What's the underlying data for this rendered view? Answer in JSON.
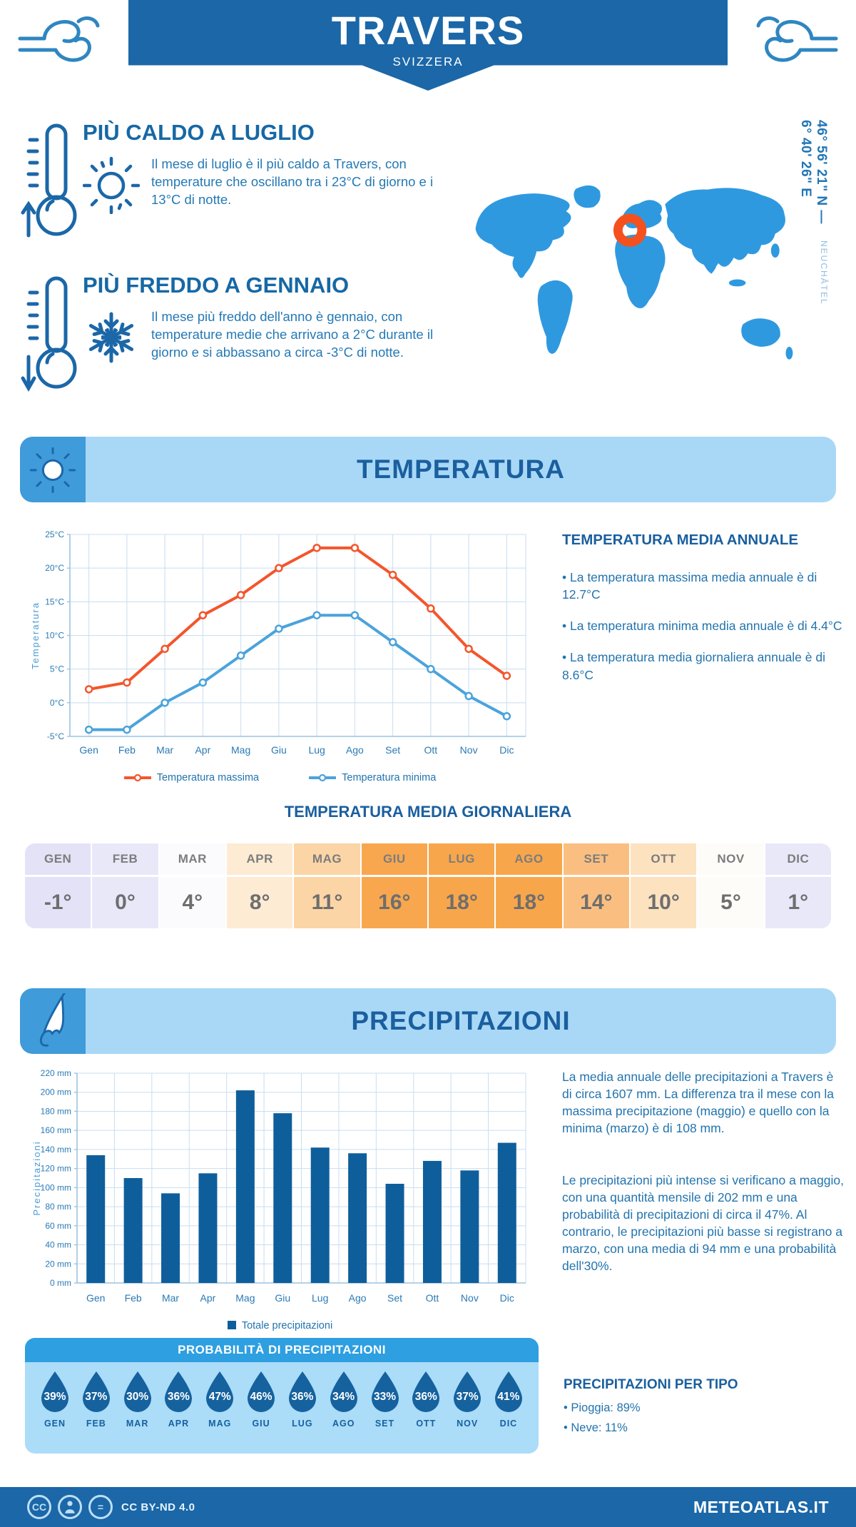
{
  "header": {
    "title": "TRAVERS",
    "subtitle": "SVIZZERA"
  },
  "highlights": {
    "warm": {
      "title": "PIÙ CALDO A LUGLIO",
      "text": "Il mese di luglio è il più caldo a Travers, con temperature che oscillano tra i 23°C di giorno e i 13°C di notte."
    },
    "cold": {
      "title": "PIÙ FREDDO A GENNAIO",
      "text": "Il mese più freddo dell'anno è gennaio, con temperature medie che arrivano a 2°C durante il giorno e si abbassano a circa -3°C di notte."
    }
  },
  "map": {
    "coordinates": "46° 56' 21\" N — 6° 40' 26\" E",
    "region": "NEUCHÂTEL",
    "land_color": "#2F99E0",
    "marker_color": "#F4511E"
  },
  "temperature": {
    "section_title": "TEMPERATURA",
    "annual": {
      "title": "TEMPERATURA MEDIA ANNUALE",
      "bullets": [
        "• La temperatura massima media annuale è di 12.7°C",
        "• La temperatura minima media annuale è di 4.4°C",
        "• La temperatura media giornaliera annuale è di 8.6°C"
      ]
    },
    "daily": {
      "title": "TEMPERATURA MEDIA GIORNALIERA",
      "months": [
        {
          "label": "GEN",
          "value": "-1°",
          "bg": "#E3E2F7"
        },
        {
          "label": "FEB",
          "value": "0°",
          "bg": "#E9E8F9"
        },
        {
          "label": "MAR",
          "value": "4°",
          "bg": "#FBFBFD"
        },
        {
          "label": "APR",
          "value": "8°",
          "bg": "#FDEBD4"
        },
        {
          "label": "MAG",
          "value": "11°",
          "bg": "#FBD5A6"
        },
        {
          "label": "GIU",
          "value": "16°",
          "bg": "#F8A74F"
        },
        {
          "label": "LUG",
          "value": "18°",
          "bg": "#F8A64B"
        },
        {
          "label": "AGO",
          "value": "18°",
          "bg": "#F8A64B"
        },
        {
          "label": "SET",
          "value": "14°",
          "bg": "#FABF80"
        },
        {
          "label": "OTT",
          "value": "10°",
          "bg": "#FDE2C0"
        },
        {
          "label": "NOV",
          "value": "5°",
          "bg": "#FEFCF9"
        },
        {
          "label": "DIC",
          "value": "1°",
          "bg": "#E9E8F9"
        }
      ]
    }
  },
  "precipitation": {
    "section_title": "PRECIPITAZIONI",
    "paragraphs": [
      "La media annuale delle precipitazioni a Travers è di circa 1607 mm. La differenza tra il mese con la massima precipitazione (maggio) e quello con la minima (marzo) è di 108 mm.",
      "Le precipitazioni più intense si verificano a maggio, con una quantità mensile di 202 mm e una probabilità di precipitazioni di circa il 47%. Al contrario, le precipitazioni più basse si registrano a marzo, con una media di 94 mm e una probabilità dell'30%."
    ],
    "probability": {
      "title": "PROBABILITÀ DI PRECIPITAZIONI",
      "months": [
        {
          "label": "GEN",
          "value": "39%"
        },
        {
          "label": "FEB",
          "value": "37%"
        },
        {
          "label": "MAR",
          "value": "30%"
        },
        {
          "label": "APR",
          "value": "36%"
        },
        {
          "label": "MAG",
          "value": "47%"
        },
        {
          "label": "GIU",
          "value": "46%"
        },
        {
          "label": "LUG",
          "value": "36%"
        },
        {
          "label": "AGO",
          "value": "34%"
        },
        {
          "label": "SET",
          "value": "33%"
        },
        {
          "label": "OTT",
          "value": "36%"
        },
        {
          "label": "NOV",
          "value": "37%"
        },
        {
          "label": "DIC",
          "value": "41%"
        }
      ]
    },
    "by_type": {
      "title": "PRECIPITAZIONI PER TIPO",
      "bullets": [
        "• Pioggia: 89%",
        "• Neve: 11%"
      ]
    }
  },
  "footer": {
    "license": "CC BY-ND 4.0",
    "site": "METEOATLAS.IT"
  },
  "chart_data": [
    {
      "type": "line",
      "title": "Temperatura massima e minima mensile",
      "x": [
        "Gen",
        "Feb",
        "Mar",
        "Apr",
        "Mag",
        "Giu",
        "Lug",
        "Ago",
        "Set",
        "Ott",
        "Nov",
        "Dic"
      ],
      "ylabel": "Temperatura",
      "ylim": [
        -5,
        25
      ],
      "ytick_step": 5,
      "ytick_suffix": "°C",
      "grid": true,
      "legend_position": "bottom",
      "series": [
        {
          "name": "Temperatura massima",
          "color": "#F4552B",
          "values": [
            2,
            3,
            8,
            13,
            16,
            20,
            23,
            23,
            19,
            14,
            8,
            4
          ]
        },
        {
          "name": "Temperatura minima",
          "color": "#4BA3DC",
          "values": [
            -4,
            -4,
            0,
            3,
            7,
            11,
            13,
            13,
            9,
            5,
            1,
            -2
          ]
        }
      ]
    },
    {
      "type": "bar",
      "title": "Totale precipitazioni mensili",
      "categories": [
        "Gen",
        "Feb",
        "Mar",
        "Apr",
        "Mag",
        "Giu",
        "Lug",
        "Ago",
        "Set",
        "Ott",
        "Nov",
        "Dic"
      ],
      "values": [
        134,
        110,
        94,
        115,
        202,
        178,
        142,
        136,
        104,
        128,
        118,
        147
      ],
      "color": "#0F5E9C",
      "ylabel": "Precipitazioni",
      "ylim": [
        0,
        220
      ],
      "ytick_step": 20,
      "ytick_suffix": " mm",
      "grid": true,
      "legend": "Totale precipitazioni"
    }
  ]
}
